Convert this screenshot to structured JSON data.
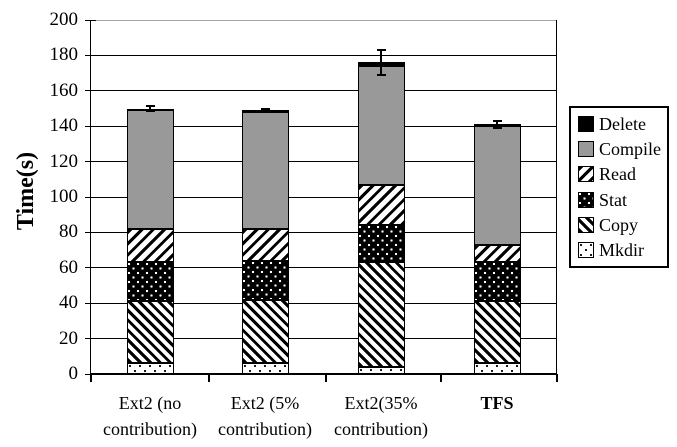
{
  "chart_data": {
    "type": "stacked-bar",
    "title": "",
    "ylabel": "Time(s)",
    "xlabel": "",
    "ylim": [
      0,
      200
    ],
    "yticks": [
      0,
      20,
      40,
      60,
      80,
      100,
      120,
      140,
      160,
      180,
      200
    ],
    "grid": true,
    "categories": [
      {
        "label": "Ext2 (no contribution)",
        "lines": [
          "Ext2 (no",
          "contribution)"
        ],
        "bold": false
      },
      {
        "label": "Ext2 (5% contribution)",
        "lines": [
          "Ext2 (5%",
          "contribution)"
        ],
        "bold": false
      },
      {
        "label": "Ext2(35% contribution)",
        "lines": [
          "Ext2(35%",
          "contribution)"
        ],
        "bold": false
      },
      {
        "label": "TFS",
        "lines": [
          "TFS"
        ],
        "bold": true
      }
    ],
    "series": [
      {
        "name": "Mkdir",
        "pattern": "dots-white",
        "values": [
          6,
          6,
          4,
          6
        ]
      },
      {
        "name": "Copy",
        "pattern": "hatch-back",
        "values": [
          35,
          36,
          59,
          35
        ]
      },
      {
        "name": "Stat",
        "pattern": "dots-black",
        "values": [
          22,
          22,
          21,
          22
        ]
      },
      {
        "name": "Read",
        "pattern": "hatch-fwd",
        "values": [
          19,
          18,
          23,
          10
        ]
      },
      {
        "name": "Compile",
        "pattern": "solid-gray",
        "values": [
          67,
          66,
          67,
          67
        ]
      },
      {
        "name": "Delete",
        "pattern": "solid-black",
        "values": [
          1,
          1,
          2,
          1
        ]
      }
    ],
    "totals": [
      150,
      149,
      176,
      141
    ],
    "error_bars": {
      "plus_minus": [
        1.5,
        1,
        7,
        2
      ]
    },
    "legend": {
      "position": "right",
      "items": [
        "Delete",
        "Compile",
        "Read",
        "Stat",
        "Copy",
        "Mkdir"
      ]
    },
    "colors": {
      "compile_gray": "#999999",
      "black": "#000000",
      "white": "#ffffff",
      "top_gridline": "#a6a6a6"
    }
  }
}
